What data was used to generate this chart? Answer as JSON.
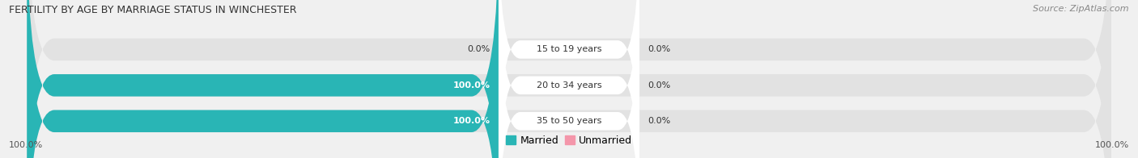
{
  "title": "FERTILITY BY AGE BY MARRIAGE STATUS IN WINCHESTER",
  "source": "Source: ZipAtlas.com",
  "categories": [
    "15 to 19 years",
    "20 to 34 years",
    "35 to 50 years"
  ],
  "married_values": [
    0.0,
    100.0,
    100.0
  ],
  "unmarried_values": [
    0.0,
    0.0,
    0.0
  ],
  "married_color": "#29b5b5",
  "unmarried_color": "#f496aa",
  "bar_bg_color": "#e2e2e2",
  "label_married_left": [
    "0.0%",
    "100.0%",
    "100.0%"
  ],
  "label_unmarried_right": [
    "0.0%",
    "0.0%",
    "0.0%"
  ],
  "axis_label_left": "100.0%",
  "axis_label_right": "100.0%",
  "fig_bg_color": "#f0f0f0",
  "title_color": "#333333",
  "source_color": "#888888",
  "label_color": "#333333",
  "title_fontsize": 9,
  "source_fontsize": 8,
  "bar_label_fontsize": 8,
  "cat_label_fontsize": 8,
  "axis_label_fontsize": 8,
  "legend_fontsize": 9
}
